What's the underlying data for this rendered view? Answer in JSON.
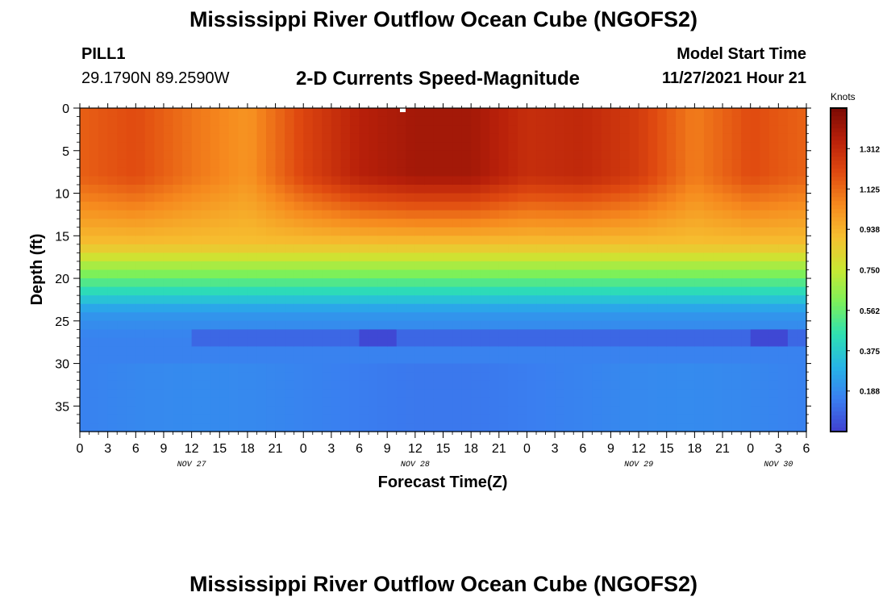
{
  "page": {
    "title": "Mississippi River Outflow Ocean Cube (NGOFS2)",
    "footer_title": "Mississippi River Outflow Ocean Cube (NGOFS2)"
  },
  "header": {
    "station": "PILL1",
    "coordinates": "29.1790N  89.2590W",
    "subtitle": "2-D Currents Speed-Magnitude",
    "model_start_label": "Model Start Time",
    "model_start_value": "11/27/2021 Hour 21"
  },
  "colorbar": {
    "units": "Knots",
    "tick_labels": [
      "1.312",
      "1.125",
      "0.938",
      "0.750",
      "0.562",
      "0.375",
      "0.188"
    ],
    "range": [
      0,
      1.5
    ],
    "colors": [
      "#4040d0",
      "#3a7ef0",
      "#26b4e6",
      "#2ee0b2",
      "#7cf05a",
      "#c8e832",
      "#f6c030",
      "#f68a1e",
      "#e04a10",
      "#b8200a",
      "#7a0a04"
    ]
  },
  "chart_data": {
    "type": "heatmap",
    "title": "2-D Currents Speed-Magnitude",
    "xlabel": "Forecast Time(Z)",
    "ylabel": "Depth (ft)",
    "x_tick_labels": [
      "0",
      "3",
      "6",
      "9",
      "12",
      "15",
      "18",
      "21",
      "0",
      "3",
      "6",
      "9",
      "12",
      "15",
      "18",
      "21",
      "0",
      "3",
      "6",
      "9",
      "12",
      "15",
      "18",
      "21",
      "0",
      "3",
      "6"
    ],
    "x_range_hours": [
      0,
      78
    ],
    "date_labels": [
      {
        "label": "NOV 27",
        "hour": 12
      },
      {
        "label": "NOV 28",
        "hour": 36
      },
      {
        "label": "NOV 29",
        "hour": 60
      },
      {
        "label": "NOV 30",
        "hour": 75
      }
    ],
    "y_tick_labels": [
      "0",
      "5",
      "10",
      "15",
      "20",
      "25",
      "30",
      "35"
    ],
    "y_range_ft": [
      0,
      38
    ],
    "y_inverted": true,
    "value_units": "Knots",
    "value_range": [
      0,
      1.5
    ],
    "surface_speed_by_hour": {
      "hours": [
        0,
        6,
        12,
        18,
        24,
        30,
        36,
        42,
        48,
        54,
        60,
        66,
        72,
        78
      ],
      "knots": [
        1.15,
        1.2,
        1.1,
        1.02,
        1.22,
        1.35,
        1.4,
        1.4,
        1.3,
        1.32,
        1.25,
        1.08,
        1.2,
        1.14
      ]
    },
    "low_speed_band_ft": 27
  }
}
